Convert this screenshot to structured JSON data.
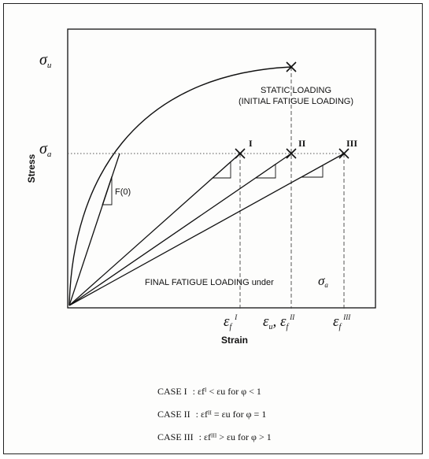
{
  "diagram": {
    "y_axis_label": "Stress",
    "x_axis_label": "Strain",
    "sigma_u_label": "σ",
    "sigma_u_sub": "u",
    "sigma_a_label": "σ",
    "sigma_a_sub": "a",
    "static_loading_line1": "STATIC LOADING",
    "static_loading_line2": "(INITIAL FATIGUE LOADING)",
    "initial_slope_label": "F(0)",
    "final_loading_label": "FINAL FATIGUE LOADING under",
    "final_loading_symbol": "σ",
    "final_loading_sub": "a",
    "case_markers": [
      "I",
      "II",
      "III"
    ],
    "strain_labels": [
      "εf ᴵ",
      "εu , εf ᴵᴵ",
      "εf ᴵᴵᴵ"
    ],
    "eps_f_I": "ε",
    "eps_f_I_sub": "f",
    "eps_f_I_sup": "I",
    "eps_u": "ε",
    "eps_u_sub": "u",
    "eps_f_II": "ε",
    "eps_f_II_sub": "f",
    "eps_f_II_sup": "II",
    "eps_f_III": "ε",
    "eps_f_III_sub": "f",
    "eps_f_III_sup": "III"
  },
  "cases": [
    {
      "name": "CASE  I",
      "relation": ": εfᴵ < εu  for  φ < 1"
    },
    {
      "name": "CASE  II",
      "relation": ": εfᴵᴵ = εu  for  φ = 1"
    },
    {
      "name": "CASE  III",
      "relation": ": εfᴵᴵᴵ > εu  for  φ > 1"
    }
  ]
}
